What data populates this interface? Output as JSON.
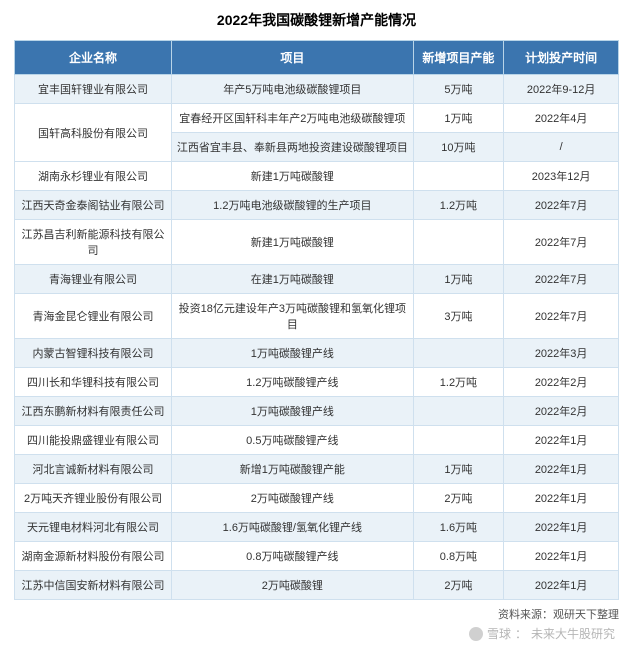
{
  "title": "2022年我国碳酸锂新增产能情况",
  "source_label": "资料来源：观研天下整理",
  "watermark": {
    "site": "雪球",
    "author": "未来大牛股研究"
  },
  "table": {
    "header_bg": "#3b75af",
    "header_fg": "#ffffff",
    "row_odd_bg": "#eaf2f8",
    "row_even_bg": "#ffffff",
    "border_color": "#cfe0ee",
    "title_fontsize": 14,
    "header_fontsize": 12,
    "cell_fontsize": 11,
    "source_fontsize": 11,
    "col_widths_pct": [
      26,
      40,
      15,
      19
    ],
    "columns": [
      "企业名称",
      "项目",
      "新增项目产能",
      "计划投产时间"
    ],
    "rows": [
      {
        "company": "宜丰国轩锂业有限公司",
        "project": "年产5万吨电池级碳酸锂项目",
        "capacity": "5万吨",
        "date": "2022年9-12月",
        "company_rowspan": 1
      },
      {
        "company": "国轩高科股份有限公司",
        "project": "宜春经开区国轩科丰年产2万吨电池级碳酸锂项",
        "capacity": "1万吨",
        "date": "2022年4月",
        "company_rowspan": 2
      },
      {
        "company": "",
        "project": "江西省宜丰县、奉新县两地投资建设碳酸锂项目",
        "capacity": "10万吨",
        "date": "/",
        "company_rowspan": 0
      },
      {
        "company": "湖南永杉锂业有限公司",
        "project": "新建1万吨碳酸锂",
        "capacity": "",
        "date": "2023年12月",
        "company_rowspan": 1
      },
      {
        "company": "江西天奇金泰阁钴业有限公司",
        "project": "1.2万吨电池级碳酸锂的生产项目",
        "capacity": "1.2万吨",
        "date": "2022年7月",
        "company_rowspan": 1
      },
      {
        "company": "江苏昌吉利新能源科技有限公司",
        "project": "新建1万吨碳酸锂",
        "capacity": "",
        "date": "2022年7月",
        "company_rowspan": 1
      },
      {
        "company": "青海锂业有限公司",
        "project": "在建1万吨碳酸锂",
        "capacity": "1万吨",
        "date": "2022年7月",
        "company_rowspan": 1
      },
      {
        "company": "青海金昆仑锂业有限公司",
        "project": "投资18亿元建设年产3万吨碳酸锂和氢氧化锂项目",
        "capacity": "3万吨",
        "date": "2022年7月",
        "company_rowspan": 1
      },
      {
        "company": "内蒙古智锂科技有限公司",
        "project": "1万吨碳酸锂产线",
        "capacity": "",
        "date": "2022年3月",
        "company_rowspan": 1
      },
      {
        "company": "四川长和华锂科技有限公司",
        "project": "1.2万吨碳酸锂产线",
        "capacity": "1.2万吨",
        "date": "2022年2月",
        "company_rowspan": 1
      },
      {
        "company": "江西东鹏新材料有限责任公司",
        "project": "1万吨碳酸锂产线",
        "capacity": "",
        "date": "2022年2月",
        "company_rowspan": 1
      },
      {
        "company": "四川能投鼎盛锂业有限公司",
        "project": "0.5万吨碳酸锂产线",
        "capacity": "",
        "date": "2022年1月",
        "company_rowspan": 1
      },
      {
        "company": "河北言诚新材料有限公司",
        "project": "新增1万吨碳酸锂产能",
        "capacity": "1万吨",
        "date": "2022年1月",
        "company_rowspan": 1
      },
      {
        "company": "2万吨天齐锂业股份有限公司",
        "project": "2万吨碳酸锂产线",
        "capacity": "2万吨",
        "date": "2022年1月",
        "company_rowspan": 1
      },
      {
        "company": "天元锂电材料河北有限公司",
        "project": "1.6万吨碳酸锂/氢氧化锂产线",
        "capacity": "1.6万吨",
        "date": "2022年1月",
        "company_rowspan": 1
      },
      {
        "company": "湖南金源新材料股份有限公司",
        "project": "0.8万吨碳酸锂产线",
        "capacity": "0.8万吨",
        "date": "2022年1月",
        "company_rowspan": 1
      },
      {
        "company": "江苏中信国安新材料有限公司",
        "project": "2万吨碳酸锂",
        "capacity": "2万吨",
        "date": "2022年1月",
        "company_rowspan": 1
      }
    ]
  }
}
